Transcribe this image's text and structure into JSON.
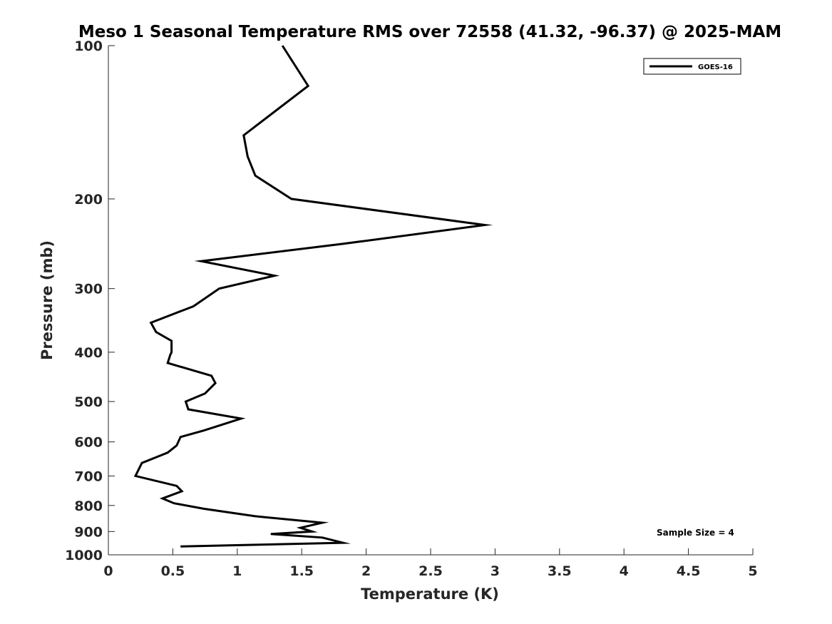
{
  "chart_data": {
    "type": "line",
    "title": "Meso 1 Seasonal Temperature RMS over 72558 (41.32, -96.37) @ 2025-MAM",
    "xlabel": "Temperature (K)",
    "ylabel": "Pressure (mb)",
    "xlim": [
      0,
      5
    ],
    "ylim": [
      100,
      1000
    ],
    "yscale": "log",
    "y_reversed": true,
    "grid": false,
    "legend_position": "top-right",
    "xticks": [
      0,
      0.5,
      1,
      1.5,
      2,
      2.5,
      3,
      3.5,
      4,
      4.5,
      5
    ],
    "xtick_labels": [
      "0",
      "0.5",
      "1",
      "1.5",
      "2",
      "2.5",
      "3",
      "3.5",
      "4",
      "4.5",
      "5"
    ],
    "yticks": [
      100,
      200,
      300,
      400,
      500,
      600,
      700,
      800,
      900,
      1000
    ],
    "ytick_labels": [
      "100",
      "200",
      "300",
      "400",
      "500",
      "600",
      "700",
      "800",
      "900",
      "1000"
    ],
    "series": [
      {
        "name": "GOES-16",
        "color": "#000000",
        "x": [
          1.35,
          1.55,
          1.05,
          1.08,
          1.14,
          1.42,
          2.92,
          1.82,
          0.72,
          1.29,
          0.86,
          0.66,
          0.33,
          0.37,
          0.49,
          0.49,
          0.48,
          0.46,
          0.8,
          0.83,
          0.75,
          0.6,
          0.62,
          1.03,
          0.74,
          0.56,
          0.53,
          0.46,
          0.26,
          0.21,
          0.53,
          0.57,
          0.42,
          0.51,
          0.74,
          1.14,
          1.66,
          1.49,
          1.58,
          1.26,
          1.66,
          1.82,
          0.56
        ],
        "y": [
          100,
          120,
          150,
          165,
          180,
          200,
          225,
          245,
          265,
          283,
          300,
          325,
          350,
          365,
          380,
          400,
          405,
          420,
          445,
          460,
          482,
          500,
          518,
          540,
          570,
          587,
          610,
          630,
          660,
          700,
          732,
          750,
          775,
          792,
          812,
          840,
          865,
          885,
          900,
          910,
          925,
          947,
          963
        ]
      }
    ],
    "annotations": [
      "Sample Size = 4"
    ]
  },
  "legend": {
    "items": [
      "GOES-16"
    ]
  },
  "annotation": {
    "sample_size": "Sample Size = 4"
  }
}
